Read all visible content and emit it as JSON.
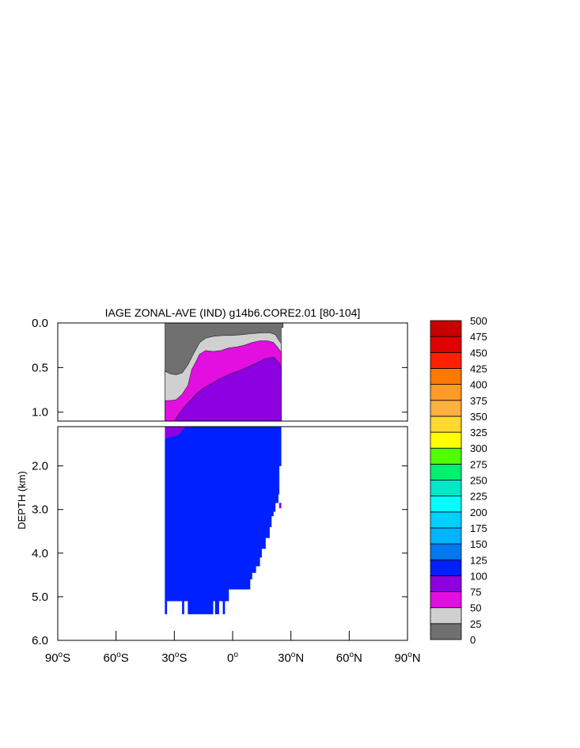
{
  "chart_data": {
    "type": "heatmap",
    "title": "IAGE ZONAL-AVE (IND) g14b6.CORE2.01 [80-104]",
    "ylabel": "DEPTH (km)",
    "xlabel": "",
    "xlim": [
      -90,
      90
    ],
    "upper_panel": {
      "ylim": [
        0,
        1.1
      ],
      "yticks": [
        "0.0",
        "0.5",
        "1.0"
      ],
      "ytick_values": [
        0,
        0.5,
        1.0
      ]
    },
    "lower_panel": {
      "ylim": [
        1.1,
        6.0
      ],
      "yticks": [
        "2.0",
        "3.0",
        "4.0",
        "5.0",
        "6.0"
      ],
      "ytick_values": [
        2,
        3,
        4,
        5,
        6
      ]
    },
    "xticks": [
      {
        "value": -90,
        "num": "90",
        "hem": "S"
      },
      {
        "value": -60,
        "num": "60",
        "hem": "S"
      },
      {
        "value": -30,
        "num": "30",
        "hem": "S"
      },
      {
        "value": 0,
        "num": "0",
        "hem": ""
      },
      {
        "value": 30,
        "num": "30",
        "hem": "N"
      },
      {
        "value": 60,
        "num": "60",
        "hem": "N"
      },
      {
        "value": 90,
        "num": "90",
        "hem": "N"
      }
    ],
    "colorbar": {
      "levels": [
        "0",
        "25",
        "50",
        "75",
        "100",
        "125",
        "150",
        "175",
        "200",
        "225",
        "250",
        "275",
        "300",
        "325",
        "350",
        "375",
        "400",
        "425",
        "450",
        "475",
        "500"
      ],
      "colors": [
        "#707070",
        "#d0d0d0",
        "#e20fe0",
        "#8c00e2",
        "#0020ff",
        "#0078f0",
        "#00b4ff",
        "#00d0ff",
        "#00ffff",
        "#00e8c8",
        "#00f070",
        "#50ff00",
        "#ffff00",
        "#ffd830",
        "#ffb040",
        "#ff9c28",
        "#ff7800",
        "#ff2000",
        "#e00000",
        "#c80000"
      ]
    },
    "contour_bands": [
      {
        "band": "0-25",
        "polygon": [
          [
            -34.8,
            0
          ],
          [
            26,
            0
          ],
          [
            26,
            0.05
          ],
          [
            25,
            0.05
          ],
          [
            25,
            1.1
          ],
          [
            -34.8,
            1.1
          ]
        ]
      },
      {
        "band": "25-50",
        "polygon": [
          [
            -34.8,
            0.54
          ],
          [
            -32,
            0.57
          ],
          [
            -29,
            0.58
          ],
          [
            -26,
            0.56
          ],
          [
            -23,
            0.47
          ],
          [
            -20,
            0.34
          ],
          [
            -17,
            0.22
          ],
          [
            -14,
            0.17
          ],
          [
            -10,
            0.15
          ],
          [
            -5,
            0.14
          ],
          [
            0,
            0.14
          ],
          [
            5,
            0.13
          ],
          [
            10,
            0.12
          ],
          [
            15,
            0.11
          ],
          [
            19,
            0.11
          ],
          [
            22,
            0.13
          ],
          [
            24,
            0.2
          ],
          [
            25,
            0.23
          ],
          [
            25,
            1.1
          ],
          [
            -34.8,
            1.1
          ]
        ]
      },
      {
        "band": "50-75",
        "polygon": [
          [
            -34.8,
            0.87
          ],
          [
            -32,
            0.87
          ],
          [
            -29,
            0.86
          ],
          [
            -26,
            0.8
          ],
          [
            -23,
            0.7
          ],
          [
            -21,
            0.52
          ],
          [
            -19,
            0.44
          ],
          [
            -17,
            0.35
          ],
          [
            -14,
            0.31
          ],
          [
            -10,
            0.32
          ],
          [
            -6,
            0.31
          ],
          [
            -2,
            0.28
          ],
          [
            2,
            0.27
          ],
          [
            6,
            0.25
          ],
          [
            10,
            0.22
          ],
          [
            14,
            0.2
          ],
          [
            18,
            0.2
          ],
          [
            21,
            0.22
          ],
          [
            23,
            0.27
          ],
          [
            25,
            0.33
          ],
          [
            25,
            1.1
          ],
          [
            -34.8,
            1.1
          ]
        ]
      },
      {
        "band": "75-100",
        "polygon": [
          [
            -34.8,
            1.1
          ],
          [
            -30,
            1.1
          ],
          [
            -27,
            1.0
          ],
          [
            -24,
            0.92
          ],
          [
            -21,
            0.85
          ],
          [
            -18,
            0.78
          ],
          [
            -15,
            0.73
          ],
          [
            -11,
            0.68
          ],
          [
            -7,
            0.63
          ],
          [
            -3,
            0.59
          ],
          [
            0,
            0.56
          ],
          [
            3,
            0.54
          ],
          [
            7,
            0.5
          ],
          [
            10,
            0.47
          ],
          [
            13,
            0.44
          ],
          [
            16,
            0.41
          ],
          [
            19,
            0.39
          ],
          [
            21,
            0.38
          ],
          [
            22,
            0.4
          ],
          [
            24,
            0.45
          ],
          [
            25,
            0.5
          ],
          [
            25,
            1.1
          ]
        ]
      },
      {
        "band": "75-100",
        "polygon": [
          [
            -34.8,
            1.1
          ],
          [
            -30,
            1.1
          ],
          [
            -24,
            1.1
          ],
          [
            -28.2,
            1.3
          ],
          [
            -34.8,
            1.38
          ]
        ]
      },
      {
        "band": "100-125",
        "polygon": [
          [
            -34.8,
            1.38
          ],
          [
            -28.2,
            1.3
          ],
          [
            -24,
            1.1
          ],
          [
            25,
            1.1
          ],
          [
            25,
            2.0
          ],
          [
            24,
            2.0
          ],
          [
            24,
            2.65
          ],
          [
            23.5,
            2.65
          ],
          [
            23.5,
            2.85
          ],
          [
            23,
            2.85
          ],
          [
            23,
            2.85
          ],
          [
            22,
            2.85
          ],
          [
            22,
            3.05
          ],
          [
            21,
            3.05
          ],
          [
            21,
            3.15
          ],
          [
            20,
            3.15
          ],
          [
            20,
            3.4
          ],
          [
            19,
            3.4
          ],
          [
            19,
            3.65
          ],
          [
            17,
            3.65
          ],
          [
            17,
            3.9
          ],
          [
            15,
            3.9
          ],
          [
            15,
            4.1
          ],
          [
            14,
            4.1
          ],
          [
            14,
            4.3
          ],
          [
            12,
            4.3
          ],
          [
            12,
            4.45
          ],
          [
            10,
            4.45
          ],
          [
            10,
            4.6
          ],
          [
            9,
            4.6
          ],
          [
            9,
            4.83
          ],
          [
            -2,
            4.83
          ],
          [
            -2,
            5.1
          ],
          [
            -4,
            5.1
          ],
          [
            -4,
            5.4
          ],
          [
            -5,
            5.4
          ],
          [
            -5,
            5.1
          ],
          [
            -7,
            5.1
          ],
          [
            -7,
            5.4
          ],
          [
            -9,
            5.4
          ],
          [
            -9,
            5.1
          ],
          [
            -10,
            5.1
          ],
          [
            -10,
            5.4
          ],
          [
            -23,
            5.4
          ],
          [
            -23,
            5.1
          ],
          [
            -25,
            5.1
          ],
          [
            -25,
            5.4
          ],
          [
            -26,
            5.4
          ],
          [
            -26,
            5.1
          ],
          [
            -33.8,
            5.1
          ],
          [
            -33.8,
            5.4
          ],
          [
            -34.8,
            5.4
          ]
        ]
      },
      {
        "band": "75-100",
        "polygon": [
          [
            24,
            2.85
          ],
          [
            25,
            2.85
          ],
          [
            25,
            2.97
          ],
          [
            24,
            2.97
          ]
        ]
      }
    ]
  }
}
